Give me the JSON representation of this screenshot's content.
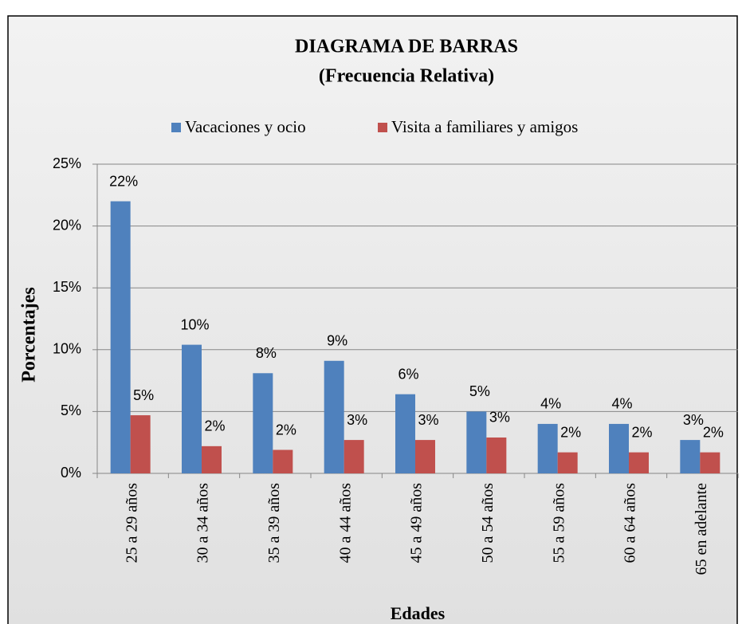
{
  "chart_data": {
    "type": "bar",
    "title": "DIAGRAMA DE BARRAS",
    "subtitle": "(Frecuencia Relativa)",
    "x_label": "Edades",
    "y_label": "Porcentajes",
    "categories": [
      "25 a 29 años",
      "30 a 34 años",
      "35 a 39 años",
      "40 a 44 años",
      "45 a 49 años",
      "50 a 54 años",
      "55 a 59 años",
      "60 a 64 años",
      "65 en adelante"
    ],
    "series": [
      {
        "name": "Vacaciones y ocio",
        "color": "#4f81bd",
        "values": [
          22.0,
          10.4,
          8.1,
          9.1,
          6.4,
          5.0,
          4.0,
          4.0,
          2.7
        ],
        "value_labels": [
          "22%",
          "10%",
          "8%",
          "9%",
          "6%",
          "5%",
          "4%",
          "4%",
          "3%"
        ]
      },
      {
        "name": "Visita a familiares y amigos",
        "color": "#c0504d",
        "values": [
          4.7,
          2.2,
          1.9,
          2.7,
          2.7,
          2.9,
          1.7,
          1.7,
          1.7
        ],
        "value_labels": [
          "5%",
          "2%",
          "2%",
          "3%",
          "3%",
          "3%",
          "2%",
          "2%",
          "2%"
        ]
      }
    ],
    "ylim": [
      0,
      25
    ],
    "yticks": [
      {
        "value": 0,
        "label": "0%"
      },
      {
        "value": 5,
        "label": "5%"
      },
      {
        "value": 10,
        "label": "10%"
      },
      {
        "value": 15,
        "label": "15%"
      },
      {
        "value": 20,
        "label": "20%"
      },
      {
        "value": 25,
        "label": "25%"
      }
    ],
    "grid": true,
    "legend": "top"
  }
}
